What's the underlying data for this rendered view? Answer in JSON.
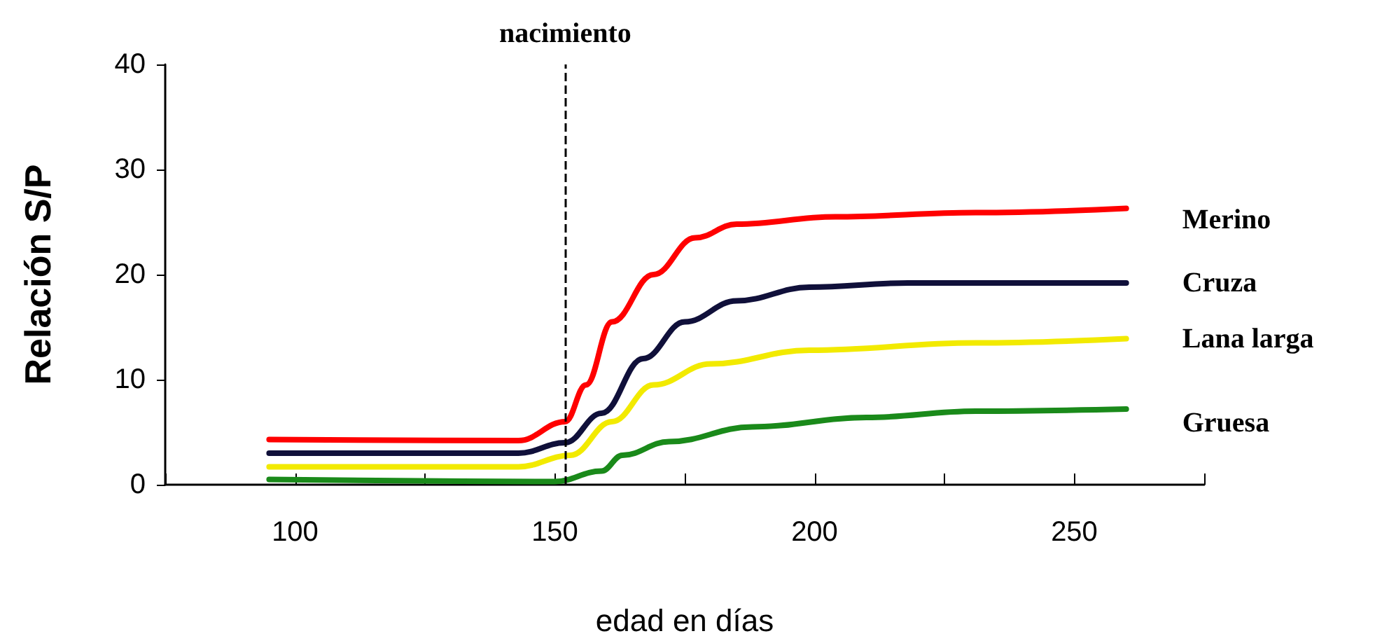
{
  "chart_data": {
    "type": "line",
    "xlabel": "edad en días",
    "ylabel": "Relación S/P",
    "xlim": [
      75,
      275
    ],
    "xticks": [
      {
        "value": 75,
        "label": null
      },
      100,
      {
        "value": 125,
        "label": null
      },
      150,
      {
        "value": 175,
        "label": null
      },
      200,
      {
        "value": 225,
        "label": null
      },
      250,
      {
        "value": 275,
        "label": null
      }
    ],
    "ylim": [
      0,
      40
    ],
    "yticks": [
      0,
      10,
      20,
      30,
      40
    ],
    "grid": false,
    "legend": false,
    "marker": "none",
    "line_style": "solid",
    "ref_lines": [
      {
        "axis": "x",
        "value": 152,
        "label": "nacimiento",
        "color": "#000000",
        "line_style": "dashed"
      }
    ],
    "series": [
      {
        "name": "Merino",
        "color": "#ff0000",
        "x": [
          95,
          143,
          152,
          156,
          161,
          169,
          177,
          185,
          204,
          231,
          260
        ],
        "values": [
          4.3,
          4.2,
          6,
          9.5,
          15.5,
          20,
          23.5,
          24.8,
          25.5,
          25.9,
          26.3
        ]
      },
      {
        "name": "Cruza",
        "color": "#10103a",
        "x": [
          95,
          143,
          152,
          159,
          167,
          175,
          185,
          199,
          218,
          260
        ],
        "values": [
          3,
          3,
          4,
          6.8,
          12,
          15.5,
          17.5,
          18.8,
          19.2,
          19.2
        ]
      },
      {
        "name": "Lana larga",
        "color": "#f2ea00",
        "x": [
          95,
          143,
          153,
          161,
          169,
          180,
          199,
          231,
          260
        ],
        "values": [
          1.7,
          1.7,
          2.8,
          6,
          9.5,
          11.5,
          12.8,
          13.5,
          13.9
        ]
      },
      {
        "name": "Gruesa",
        "color": "#1a8a1a",
        "x": [
          95,
          150,
          159,
          163,
          172,
          188,
          210,
          231,
          260
        ],
        "values": [
          0.5,
          0.3,
          1.3,
          2.8,
          4.1,
          5.5,
          6.4,
          7,
          7.2
        ]
      }
    ]
  }
}
